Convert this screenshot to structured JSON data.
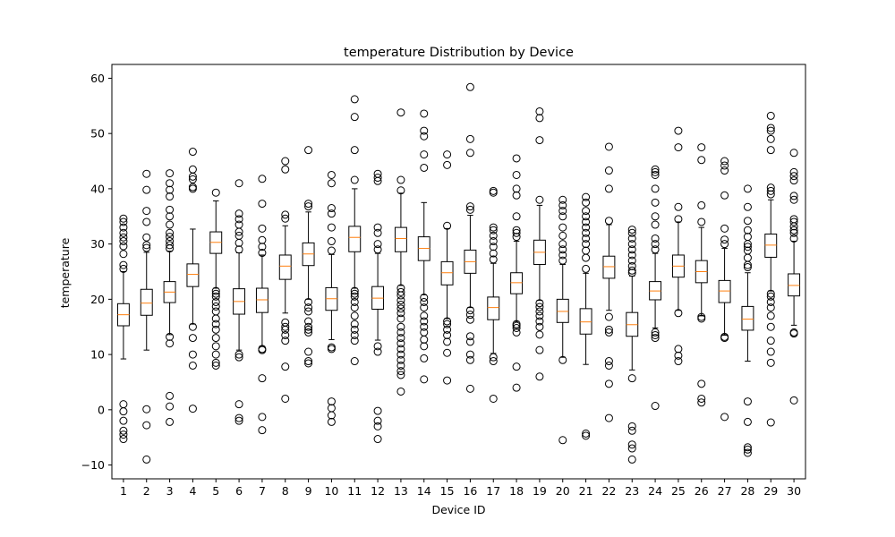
{
  "chart_data": {
    "type": "boxplot",
    "title": "temperature Distribution by Device",
    "xlabel": "Device ID",
    "ylabel": "temperature",
    "ylim": [
      -12.5,
      62.5
    ],
    "yticks": [
      -10,
      0,
      10,
      20,
      30,
      40,
      50,
      60
    ],
    "grid": false,
    "colors": {
      "box": "#000000",
      "median": "#ff7f0e",
      "flier": "#000000",
      "background": "#ffffff"
    },
    "categories": [
      "1",
      "2",
      "3",
      "4",
      "5",
      "6",
      "7",
      "8",
      "9",
      "10",
      "11",
      "12",
      "13",
      "14",
      "15",
      "16",
      "17",
      "18",
      "19",
      "20",
      "21",
      "22",
      "23",
      "24",
      "25",
      "26",
      "27",
      "28",
      "29",
      "30"
    ],
    "boxes": [
      {
        "q1": 15.2,
        "median": 17.2,
        "q3": 19.2,
        "whislo": 9.2,
        "whishi": 25.0,
        "fliers": [
          25.5,
          26.2,
          28.2,
          29.6,
          30.5,
          31.2,
          32.0,
          33.0,
          34.0,
          34.6,
          1.0,
          -0.3,
          -2.0,
          -3.8,
          -4.5,
          -5.3
        ]
      },
      {
        "q1": 17.1,
        "median": 19.3,
        "q3": 21.8,
        "whislo": 10.8,
        "whishi": 28.5,
        "fliers": [
          29.3,
          29.8,
          31.2,
          34.0,
          36.0,
          39.8,
          42.7,
          0.1,
          -2.8,
          -9.0
        ]
      },
      {
        "q1": 19.4,
        "median": 21.3,
        "q3": 23.2,
        "whislo": 13.6,
        "whishi": 28.7,
        "fliers": [
          29.2,
          29.8,
          30.5,
          31.3,
          32.0,
          33.5,
          35.0,
          36.2,
          38.6,
          39.8,
          41.0,
          42.8,
          13.2,
          12.0,
          2.5,
          0.6,
          -2.2
        ]
      },
      {
        "q1": 22.3,
        "median": 24.5,
        "q3": 26.4,
        "whislo": 15.5,
        "whishi": 32.7,
        "fliers": [
          40.0,
          40.3,
          41.7,
          42.2,
          43.5,
          46.7,
          15.0,
          13.0,
          10.0,
          8.0,
          0.2
        ]
      },
      {
        "q1": 28.3,
        "median": 30.3,
        "q3": 32.2,
        "whislo": 22.0,
        "whishi": 37.8,
        "fliers": [
          39.3,
          21.5,
          21.0,
          20.5,
          19.5,
          18.7,
          17.8,
          16.5,
          15.5,
          14.5,
          13.0,
          11.5,
          10.0,
          8.5,
          8.0
        ]
      },
      {
        "q1": 17.3,
        "median": 19.6,
        "q3": 21.9,
        "whislo": 10.8,
        "whishi": 28.4,
        "fliers": [
          29.0,
          30.2,
          31.5,
          32.2,
          33.5,
          34.5,
          35.5,
          41.0,
          10.0,
          9.5,
          1.0,
          -1.5,
          -2.0
        ]
      },
      {
        "q1": 17.6,
        "median": 19.9,
        "q3": 22.0,
        "whislo": 11.5,
        "whishi": 28.0,
        "fliers": [
          28.4,
          29.5,
          30.7,
          32.8,
          37.3,
          41.8,
          11.0,
          10.8,
          5.7,
          -1.3,
          -3.7
        ]
      },
      {
        "q1": 23.6,
        "median": 26.0,
        "q3": 28.0,
        "whislo": 17.5,
        "whishi": 33.3,
        "fliers": [
          34.6,
          35.3,
          43.5,
          45.0,
          15.8,
          15.0,
          14.5,
          13.5,
          12.5,
          7.8,
          2.0
        ]
      },
      {
        "q1": 26.1,
        "median": 28.2,
        "q3": 30.2,
        "whislo": 20.0,
        "whishi": 35.8,
        "fliers": [
          36.8,
          37.3,
          47.0,
          19.5,
          18.5,
          17.8,
          16.0,
          15.0,
          14.5,
          14.0,
          10.5,
          8.8,
          8.4
        ]
      },
      {
        "q1": 18.0,
        "median": 20.1,
        "q3": 22.1,
        "whislo": 12.7,
        "whishi": 28.1,
        "fliers": [
          28.8,
          30.5,
          33.0,
          35.5,
          36.5,
          41.0,
          42.5,
          11.3,
          11.0,
          1.5,
          0.3,
          -1.0,
          -2.2
        ]
      },
      {
        "q1": 28.6,
        "median": 31.2,
        "q3": 33.2,
        "whislo": 22.0,
        "whishi": 40.0,
        "fliers": [
          41.6,
          47.0,
          53.0,
          56.2,
          21.5,
          21.0,
          20.5,
          19.5,
          18.5,
          17.0,
          15.5,
          14.5,
          13.5,
          12.5,
          8.8
        ]
      },
      {
        "q1": 18.2,
        "median": 20.2,
        "q3": 22.3,
        "whislo": 12.6,
        "whishi": 28.3,
        "fliers": [
          29.0,
          30.0,
          32.0,
          33.0,
          41.4,
          42.0,
          42.7,
          11.5,
          10.5,
          -0.2,
          -2.0,
          -3.0,
          -5.3
        ]
      },
      {
        "q1": 28.6,
        "median": 31.0,
        "q3": 33.0,
        "whislo": 22.5,
        "whishi": 39.2,
        "fliers": [
          39.7,
          41.6,
          53.8,
          22.0,
          21.3,
          20.7,
          19.8,
          19.0,
          18.3,
          17.5,
          16.5,
          15.0,
          14.0,
          13.0,
          12.0,
          11.0,
          10.0,
          9.0,
          8.0,
          7.0,
          6.3,
          3.3
        ]
      },
      {
        "q1": 27.0,
        "median": 29.2,
        "q3": 31.3,
        "whislo": 20.8,
        "whishi": 37.5,
        "fliers": [
          43.8,
          46.2,
          49.5,
          50.5,
          53.6,
          20.3,
          19.5,
          18.5,
          17.0,
          16.0,
          15.0,
          14.0,
          12.7,
          11.5,
          9.3,
          5.5
        ]
      },
      {
        "q1": 22.6,
        "median": 24.8,
        "q3": 26.8,
        "whislo": 16.5,
        "whishi": 32.8,
        "fliers": [
          33.3,
          44.3,
          46.2,
          16.0,
          15.5,
          14.5,
          13.5,
          12.3,
          10.3,
          5.3
        ]
      },
      {
        "q1": 24.7,
        "median": 26.8,
        "q3": 28.9,
        "whislo": 18.5,
        "whishi": 35.2,
        "fliers": [
          36.2,
          36.8,
          46.5,
          49.0,
          58.4,
          18.0,
          17.2,
          16.3,
          13.3,
          12.3,
          10.0,
          9.0,
          3.8
        ]
      },
      {
        "q1": 16.3,
        "median": 18.5,
        "q3": 20.4,
        "whislo": 10.2,
        "whishi": 26.5,
        "fliers": [
          27.2,
          28.3,
          29.5,
          30.5,
          31.5,
          32.5,
          33.0,
          39.3,
          39.6,
          9.5,
          8.8,
          2.0
        ]
      },
      {
        "q1": 21.0,
        "median": 23.0,
        "q3": 24.8,
        "whislo": 16.0,
        "whishi": 30.5,
        "fliers": [
          31.3,
          32.0,
          32.5,
          35.0,
          38.8,
          40.0,
          42.5,
          45.5,
          15.5,
          15.2,
          14.8,
          14.0,
          7.8,
          4.0
        ]
      },
      {
        "q1": 26.3,
        "median": 28.5,
        "q3": 30.7,
        "whislo": 19.8,
        "whishi": 37.0,
        "fliers": [
          38.0,
          48.8,
          52.8,
          54.0,
          19.3,
          18.6,
          17.8,
          17.0,
          16.0,
          15.0,
          13.6,
          10.8,
          6.0
        ]
      },
      {
        "q1": 15.8,
        "median": 17.8,
        "q3": 20.0,
        "whislo": 9.5,
        "whishi": 26.3,
        "fliers": [
          27.0,
          28.0,
          29.0,
          30.0,
          31.5,
          33.0,
          35.0,
          36.0,
          37.0,
          38.0,
          9.0,
          -5.5
        ]
      },
      {
        "q1": 13.7,
        "median": 15.9,
        "q3": 18.3,
        "whislo": 8.2,
        "whishi": 24.7,
        "fliers": [
          25.5,
          27.5,
          28.8,
          30.0,
          31.0,
          32.0,
          33.0,
          34.0,
          35.0,
          36.0,
          37.5,
          38.5,
          -4.3,
          -4.7
        ]
      },
      {
        "q1": 23.8,
        "median": 25.9,
        "q3": 27.8,
        "whislo": 18.0,
        "whishi": 33.5,
        "fliers": [
          34.2,
          40.0,
          43.3,
          47.6,
          16.8,
          14.5,
          14.0,
          8.8,
          8.0,
          4.7,
          -1.5
        ]
      },
      {
        "q1": 13.3,
        "median": 15.4,
        "q3": 17.6,
        "whislo": 7.2,
        "whishi": 24.2,
        "fliers": [
          24.8,
          25.2,
          26.0,
          27.0,
          28.0,
          29.0,
          30.0,
          31.0,
          32.0,
          32.6,
          5.7,
          -3.0,
          -3.8,
          -6.3,
          -7.0,
          -9.0
        ]
      },
      {
        "q1": 19.9,
        "median": 21.5,
        "q3": 23.2,
        "whislo": 14.8,
        "whishi": 28.3,
        "fliers": [
          29.0,
          30.0,
          31.0,
          33.5,
          35.0,
          37.5,
          40.0,
          42.5,
          43.0,
          43.5,
          14.0,
          13.5,
          13.0,
          0.7
        ]
      },
      {
        "q1": 24.0,
        "median": 26.0,
        "q3": 28.0,
        "whislo": 18.0,
        "whishi": 34.0,
        "fliers": [
          34.5,
          36.7,
          47.5,
          50.5,
          17.5,
          11.0,
          9.8,
          8.8
        ]
      },
      {
        "q1": 23.0,
        "median": 25.0,
        "q3": 27.0,
        "whislo": 17.0,
        "whishi": 33.0,
        "fliers": [
          34.0,
          37.0,
          45.2,
          47.5,
          16.8,
          16.5,
          4.7,
          2.0,
          1.3
        ]
      },
      {
        "q1": 19.4,
        "median": 21.5,
        "q3": 23.4,
        "whislo": 13.5,
        "whishi": 29.2,
        "fliers": [
          30.0,
          30.8,
          32.8,
          38.8,
          43.3,
          44.2,
          45.0,
          13.2,
          13.0,
          -1.3
        ]
      },
      {
        "q1": 14.4,
        "median": 16.4,
        "q3": 18.7,
        "whislo": 8.8,
        "whishi": 24.8,
        "fliers": [
          25.8,
          26.2,
          27.5,
          28.8,
          29.5,
          30.0,
          31.3,
          32.5,
          34.2,
          36.7,
          40.0,
          1.5,
          -2.2,
          -6.8,
          -7.2,
          -7.8
        ]
      },
      {
        "q1": 27.6,
        "median": 29.8,
        "q3": 31.8,
        "whislo": 21.5,
        "whishi": 38.0,
        "fliers": [
          39.0,
          39.6,
          40.2,
          47.0,
          49.0,
          50.5,
          51.0,
          53.2,
          21.0,
          20.5,
          19.5,
          18.5,
          17.0,
          15.0,
          12.5,
          10.5,
          8.5,
          -2.3
        ]
      },
      {
        "q1": 20.6,
        "median": 22.5,
        "q3": 24.6,
        "whislo": 15.3,
        "whishi": 30.5,
        "fliers": [
          31.0,
          32.0,
          32.5,
          33.2,
          34.0,
          34.5,
          38.0,
          38.7,
          41.5,
          42.3,
          43.0,
          46.5,
          14.0,
          13.8,
          1.7
        ]
      }
    ]
  }
}
